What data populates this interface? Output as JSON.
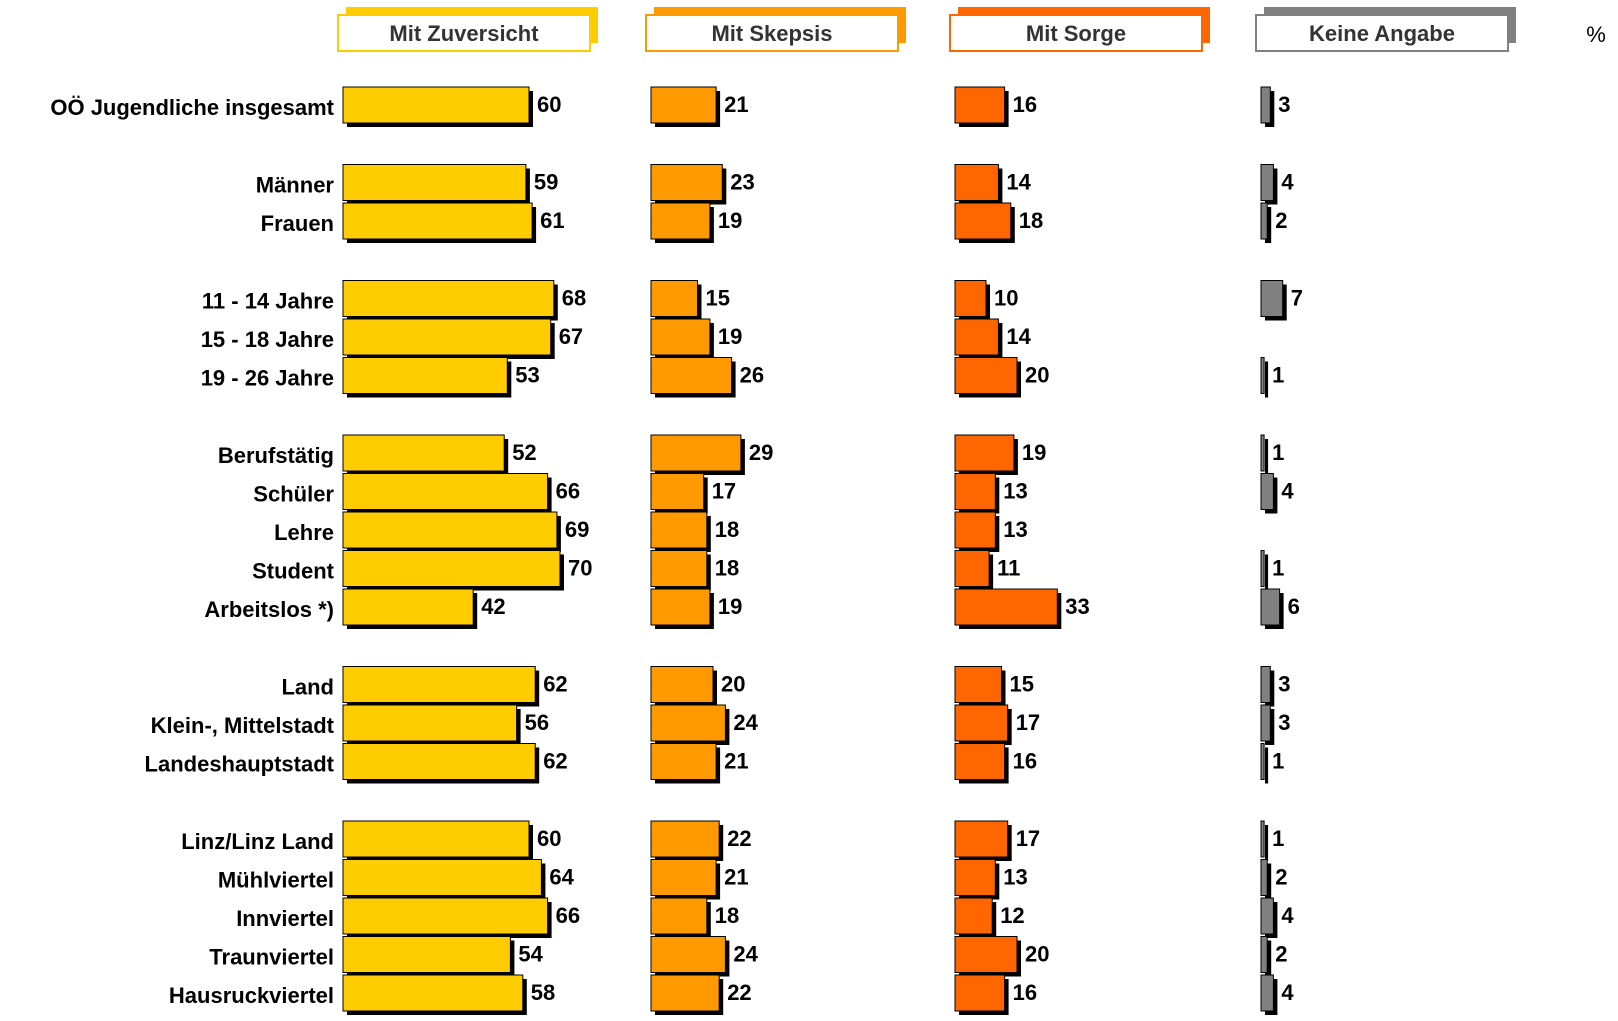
{
  "chart_data": {
    "type": "bar",
    "orientation": "horizontal",
    "unit": "%",
    "categories": [
      "OÖ Jugendliche insgesamt",
      "Männer",
      "Frauen",
      "11 - 14 Jahre",
      "15 - 18 Jahre",
      "19 - 26 Jahre",
      "Berufstätig",
      "Schüler",
      "Lehre",
      "Student",
      "Arbeitslos *)",
      "Land",
      "Klein-, Mittelstadt",
      "Landeshauptstadt",
      "Linz/Linz Land",
      "Mühlviertel",
      "Innviertel",
      "Traunviertel",
      "Hausruckviertel"
    ],
    "series": [
      {
        "name": "Mit Zuversicht",
        "color": "#FFCC00",
        "values": [
          60,
          59,
          61,
          68,
          67,
          53,
          52,
          66,
          69,
          70,
          42,
          62,
          56,
          62,
          60,
          64,
          66,
          54,
          58
        ]
      },
      {
        "name": "Mit Skepsis",
        "color": "#FF9900",
        "values": [
          21,
          23,
          19,
          15,
          19,
          26,
          29,
          17,
          18,
          18,
          19,
          20,
          24,
          21,
          22,
          21,
          18,
          24,
          22
        ]
      },
      {
        "name": "Mit Sorge",
        "color": "#FF6600",
        "values": [
          16,
          14,
          18,
          10,
          14,
          20,
          19,
          13,
          13,
          11,
          33,
          15,
          17,
          16,
          17,
          13,
          12,
          20,
          16
        ]
      },
      {
        "name": "Keine Angabe",
        "color": "#808080",
        "values": [
          3,
          4,
          2,
          7,
          null,
          1,
          1,
          4,
          null,
          1,
          6,
          3,
          3,
          1,
          1,
          2,
          4,
          2,
          4
        ]
      }
    ],
    "groups": [
      [
        0
      ],
      [
        1,
        2
      ],
      [
        3,
        4,
        5
      ],
      [
        6,
        7,
        8,
        9,
        10
      ],
      [
        11,
        12,
        13
      ],
      [
        14,
        15,
        16,
        17,
        18
      ]
    ],
    "legend": "top"
  }
}
